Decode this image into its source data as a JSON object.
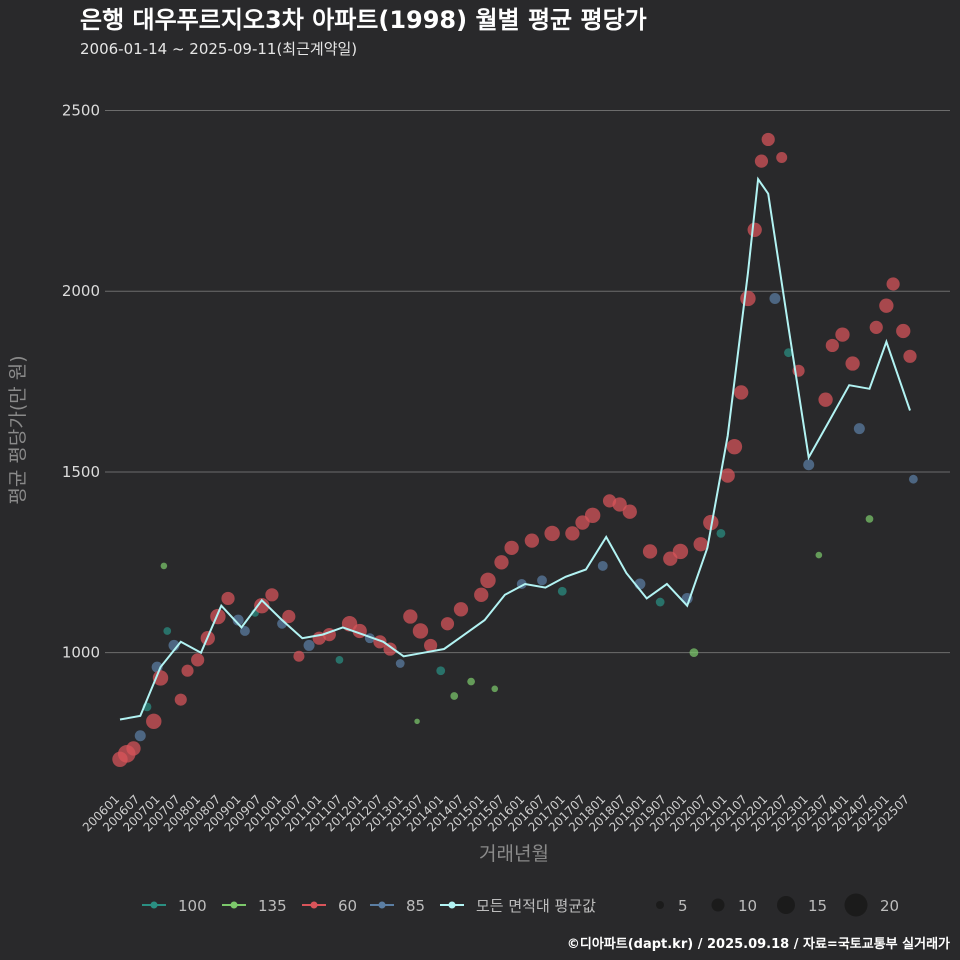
{
  "chart_data": {
    "type": "scatter",
    "title": "은행 대우푸르지오3차 아파트(1998) 월별 평균 평당가",
    "subtitle": "2006-01-14 ~ 2025-09-11(최근계약일)",
    "xlabel": "거래년월",
    "ylabel": "평균 평당가(만 원)",
    "caption": "©디아파트(dapt.kr) / 2025.09.18 / 자료=국토교통부 실거래가",
    "x_start": "2006-01",
    "x_end": "2025-09",
    "x_ticks": [
      "200601",
      "200607",
      "200701",
      "200707",
      "200801",
      "200807",
      "200901",
      "200907",
      "201001",
      "201007",
      "201101",
      "201107",
      "201201",
      "201207",
      "201301",
      "201307",
      "201401",
      "201407",
      "201501",
      "201507",
      "201601",
      "201607",
      "201701",
      "201707",
      "201801",
      "201807",
      "201901",
      "201907",
      "202001",
      "202007",
      "202101",
      "202107",
      "202201",
      "202207",
      "202301",
      "202307",
      "202401",
      "202407",
      "202501",
      "202507"
    ],
    "y_ticks": [
      1000,
      1500,
      2000,
      2500
    ],
    "ylim": [
      620,
      2590
    ],
    "grid": true,
    "legend_position": "bottom",
    "series": [
      {
        "name": "100",
        "color": "#2a8f82"
      },
      {
        "name": "135",
        "color": "#7cc86b"
      },
      {
        "name": "60",
        "color": "#d9545a"
      },
      {
        "name": "85",
        "color": "#5b7ea3"
      }
    ],
    "avg_line": {
      "name": "모든 면적대 평균값",
      "color": "#b2f3f3",
      "points": [
        [
          "2006-01",
          815
        ],
        [
          "2006-07",
          825
        ],
        [
          "2007-01",
          960
        ],
        [
          "2007-07",
          1030
        ],
        [
          "2008-01",
          1000
        ],
        [
          "2008-07",
          1130
        ],
        [
          "2009-01",
          1070
        ],
        [
          "2009-07",
          1145
        ],
        [
          "2010-01",
          1090
        ],
        [
          "2010-07",
          1040
        ],
        [
          "2011-01",
          1050
        ],
        [
          "2011-07",
          1070
        ],
        [
          "2012-01",
          1050
        ],
        [
          "2012-07",
          1030
        ],
        [
          "2013-01",
          990
        ],
        [
          "2013-07",
          1000
        ],
        [
          "2014-01",
          1010
        ],
        [
          "2014-07",
          1050
        ],
        [
          "2015-01",
          1090
        ],
        [
          "2015-07",
          1160
        ],
        [
          "2016-01",
          1190
        ],
        [
          "2016-07",
          1180
        ],
        [
          "2017-01",
          1210
        ],
        [
          "2017-07",
          1230
        ],
        [
          "2018-01",
          1320
        ],
        [
          "2018-07",
          1220
        ],
        [
          "2019-01",
          1150
        ],
        [
          "2019-07",
          1190
        ],
        [
          "2020-01",
          1130
        ],
        [
          "2020-07",
          1290
        ],
        [
          "2021-01",
          1600
        ],
        [
          "2021-07",
          2050
        ],
        [
          "2021-10",
          2310
        ],
        [
          "2022-01",
          2270
        ],
        [
          "2022-07",
          1900
        ],
        [
          "2023-01",
          1540
        ],
        [
          "2023-07",
          1640
        ],
        [
          "2024-01",
          1740
        ],
        [
          "2024-07",
          1730
        ],
        [
          "2024-12",
          1860
        ],
        [
          "2025-07",
          1670
        ]
      ]
    },
    "size_legend": [
      5,
      10,
      15,
      20
    ],
    "points": [
      [
        "2006-01",
        "60",
        705,
        14
      ],
      [
        "2006-03",
        "60",
        720,
        16
      ],
      [
        "2006-05",
        "60",
        735,
        13
      ],
      [
        "2006-07",
        "85",
        770,
        10
      ],
      [
        "2006-09",
        "100",
        850,
        8
      ],
      [
        "2006-11",
        "60",
        810,
        14
      ],
      [
        "2006-12",
        "85",
        960,
        10
      ],
      [
        "2007-01",
        "60",
        930,
        14
      ],
      [
        "2007-02",
        "135",
        1240,
        6
      ],
      [
        "2007-03",
        "100",
        1060,
        7
      ],
      [
        "2007-05",
        "85",
        1020,
        10
      ],
      [
        "2007-07",
        "60",
        870,
        11
      ],
      [
        "2007-09",
        "60",
        950,
        11
      ],
      [
        "2007-12",
        "60",
        980,
        12
      ],
      [
        "2008-03",
        "60",
        1040,
        13
      ],
      [
        "2008-06",
        "60",
        1100,
        14
      ],
      [
        "2008-09",
        "60",
        1150,
        12
      ],
      [
        "2008-12",
        "85",
        1090,
        10
      ],
      [
        "2009-02",
        "85",
        1060,
        9
      ],
      [
        "2009-05",
        "100",
        1110,
        7
      ],
      [
        "2009-07",
        "60",
        1130,
        14
      ],
      [
        "2009-10",
        "60",
        1160,
        12
      ],
      [
        "2010-01",
        "85",
        1080,
        9
      ],
      [
        "2010-03",
        "60",
        1100,
        12
      ],
      [
        "2010-06",
        "60",
        990,
        10
      ],
      [
        "2010-09",
        "85",
        1020,
        10
      ],
      [
        "2010-12",
        "60",
        1040,
        12
      ],
      [
        "2011-03",
        "60",
        1050,
        12
      ],
      [
        "2011-06",
        "100",
        980,
        7
      ],
      [
        "2011-09",
        "60",
        1080,
        14
      ],
      [
        "2011-12",
        "60",
        1060,
        13
      ],
      [
        "2012-03",
        "85",
        1040,
        9
      ],
      [
        "2012-06",
        "60",
        1030,
        12
      ],
      [
        "2012-09",
        "60",
        1010,
        12
      ],
      [
        "2012-12",
        "85",
        970,
        8
      ],
      [
        "2013-03",
        "60",
        1100,
        13
      ],
      [
        "2013-05",
        "135",
        810,
        5
      ],
      [
        "2013-06",
        "60",
        1060,
        14
      ],
      [
        "2013-09",
        "60",
        1020,
        12
      ],
      [
        "2013-12",
        "100",
        950,
        8
      ],
      [
        "2014-02",
        "60",
        1080,
        12
      ],
      [
        "2014-04",
        "135",
        880,
        7
      ],
      [
        "2014-06",
        "60",
        1120,
        13
      ],
      [
        "2014-09",
        "135",
        920,
        7
      ],
      [
        "2014-12",
        "60",
        1160,
        13
      ],
      [
        "2015-02",
        "60",
        1200,
        14
      ],
      [
        "2015-04",
        "135",
        900,
        6
      ],
      [
        "2015-06",
        "60",
        1250,
        13
      ],
      [
        "2015-09",
        "60",
        1290,
        13
      ],
      [
        "2015-12",
        "85",
        1190,
        9
      ],
      [
        "2016-03",
        "60",
        1310,
        13
      ],
      [
        "2016-06",
        "85",
        1200,
        9
      ],
      [
        "2016-09",
        "60",
        1330,
        14
      ],
      [
        "2016-12",
        "100",
        1170,
        8
      ],
      [
        "2017-03",
        "60",
        1330,
        13
      ],
      [
        "2017-06",
        "60",
        1360,
        13
      ],
      [
        "2017-09",
        "60",
        1380,
        14
      ],
      [
        "2017-12",
        "85",
        1240,
        9
      ],
      [
        "2018-02",
        "60",
        1420,
        12
      ],
      [
        "2018-05",
        "60",
        1410,
        13
      ],
      [
        "2018-08",
        "60",
        1390,
        13
      ],
      [
        "2018-11",
        "85",
        1190,
        10
      ],
      [
        "2019-02",
        "60",
        1280,
        13
      ],
      [
        "2019-05",
        "100",
        1140,
        8
      ],
      [
        "2019-08",
        "60",
        1260,
        13
      ],
      [
        "2019-11",
        "60",
        1280,
        14
      ],
      [
        "2020-01",
        "85",
        1150,
        10
      ],
      [
        "2020-03",
        "135",
        1000,
        8
      ],
      [
        "2020-05",
        "60",
        1300,
        13
      ],
      [
        "2020-08",
        "60",
        1360,
        14
      ],
      [
        "2020-11",
        "100",
        1330,
        8
      ],
      [
        "2021-01",
        "60",
        1490,
        13
      ],
      [
        "2021-03",
        "60",
        1570,
        14
      ],
      [
        "2021-05",
        "60",
        1720,
        13
      ],
      [
        "2021-07",
        "60",
        1980,
        14
      ],
      [
        "2021-09",
        "60",
        2170,
        13
      ],
      [
        "2021-11",
        "60",
        2360,
        12
      ],
      [
        "2022-01",
        "60",
        2420,
        12
      ],
      [
        "2022-03",
        "85",
        1980,
        10
      ],
      [
        "2022-05",
        "60",
        2370,
        10
      ],
      [
        "2022-07",
        "100",
        1830,
        8
      ],
      [
        "2022-10",
        "60",
        1780,
        11
      ],
      [
        "2023-01",
        "85",
        1520,
        10
      ],
      [
        "2023-04",
        "135",
        1270,
        6
      ],
      [
        "2023-06",
        "60",
        1700,
        13
      ],
      [
        "2023-08",
        "60",
        1850,
        12
      ],
      [
        "2023-11",
        "60",
        1880,
        13
      ],
      [
        "2024-02",
        "60",
        1800,
        13
      ],
      [
        "2024-04",
        "85",
        1620,
        10
      ],
      [
        "2024-07",
        "135",
        1370,
        7
      ],
      [
        "2024-09",
        "60",
        1900,
        12
      ],
      [
        "2024-12",
        "60",
        1960,
        13
      ],
      [
        "2025-02",
        "60",
        2020,
        12
      ],
      [
        "2025-05",
        "60",
        1890,
        13
      ],
      [
        "2025-07",
        "60",
        1820,
        12
      ],
      [
        "2025-08",
        "85",
        1480,
        8
      ]
    ]
  }
}
